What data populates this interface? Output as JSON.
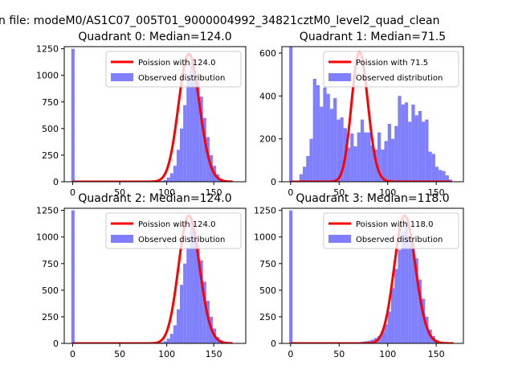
{
  "figure": {
    "suptitle": "n file: modeM0/AS1C07_005T01_9000004992_34821cztM0_level2_quad_clean"
  },
  "colors": {
    "hist": "#7f7fff",
    "poisson": "#ff0000",
    "axis": "#000000"
  },
  "chart_data": [
    {
      "type": "bar",
      "title": "Quadrant 0: Median=124.0",
      "median": 124.0,
      "bin_width": 3.5,
      "xlim": [
        -9,
        184
      ],
      "ylim": [
        0,
        1270
      ],
      "xticks": [
        0,
        50,
        100,
        150
      ],
      "yticks": [
        0,
        250,
        500,
        750,
        1000,
        1250
      ],
      "legend": [
        "Poission with 124.0",
        "Observed distribution"
      ],
      "legend_position": "top-right",
      "bins": [
        [
          -1.5,
          1250
        ],
        [
          2,
          0
        ],
        [
          5.5,
          0
        ],
        [
          9,
          0
        ],
        [
          12.5,
          0
        ],
        [
          16,
          0
        ],
        [
          19.5,
          0
        ],
        [
          23,
          0
        ],
        [
          26.5,
          0
        ],
        [
          30,
          0
        ],
        [
          33.5,
          0
        ],
        [
          37,
          0
        ],
        [
          40.5,
          0
        ],
        [
          44,
          0
        ],
        [
          47.5,
          0
        ],
        [
          51,
          0
        ],
        [
          54.5,
          0
        ],
        [
          58,
          0
        ],
        [
          61.5,
          0
        ],
        [
          65,
          0
        ],
        [
          68.5,
          0
        ],
        [
          72,
          5
        ],
        [
          75.5,
          0
        ],
        [
          79,
          0
        ],
        [
          82.5,
          5
        ],
        [
          86,
          0
        ],
        [
          89.5,
          5
        ],
        [
          93,
          8
        ],
        [
          96.5,
          15
        ],
        [
          100,
          40
        ],
        [
          103.5,
          80
        ],
        [
          107,
          150
        ],
        [
          110.5,
          300
        ],
        [
          114,
          500
        ],
        [
          117.5,
          720
        ],
        [
          121,
          950
        ],
        [
          124.5,
          1120
        ],
        [
          128,
          1050
        ],
        [
          131.5,
          950
        ],
        [
          135,
          800
        ],
        [
          138.5,
          600
        ],
        [
          142,
          420
        ],
        [
          145.5,
          250
        ],
        [
          149,
          150
        ],
        [
          152.5,
          70
        ],
        [
          156,
          30
        ],
        [
          159.5,
          15
        ],
        [
          163,
          8
        ],
        [
          166.5,
          3
        ]
      ],
      "poisson_line": {
        "x_start": 0,
        "x_end": 170,
        "peak": 1200
      }
    },
    {
      "type": "bar",
      "title": "Quadrant 1: Median=71.5",
      "median": 71.5,
      "bin_width": 3.5,
      "xlim": [
        -9,
        178
      ],
      "ylim": [
        0,
        630
      ],
      "xticks": [
        0,
        50,
        100,
        150
      ],
      "yticks": [
        0,
        200,
        400,
        600
      ],
      "legend": [
        "Poission with 71.5",
        "Observed distribution"
      ],
      "legend_position": "top-right",
      "bins": [
        [
          -1.5,
          630
        ],
        [
          2,
          0
        ],
        [
          5.5,
          5
        ],
        [
          9,
          35
        ],
        [
          12.5,
          70
        ],
        [
          16,
          120
        ],
        [
          19.5,
          200
        ],
        [
          23,
          480
        ],
        [
          26.5,
          450
        ],
        [
          30,
          350
        ],
        [
          33.5,
          440
        ],
        [
          37,
          410
        ],
        [
          40.5,
          340
        ],
        [
          44,
          390
        ],
        [
          47.5,
          290
        ],
        [
          51,
          300
        ],
        [
          54.5,
          250
        ],
        [
          58,
          160
        ],
        [
          61.5,
          225
        ],
        [
          65,
          165
        ],
        [
          68.5,
          230
        ],
        [
          72,
          290
        ],
        [
          75.5,
          230
        ],
        [
          79,
          230
        ],
        [
          82.5,
          170
        ],
        [
          86,
          150
        ],
        [
          89.5,
          230
        ],
        [
          93,
          150
        ],
        [
          96.5,
          190
        ],
        [
          100,
          270
        ],
        [
          103.5,
          200
        ],
        [
          107,
          260
        ],
        [
          110.5,
          400
        ],
        [
          114,
          360
        ],
        [
          117.5,
          370
        ],
        [
          121,
          280
        ],
        [
          124.5,
          360
        ],
        [
          128,
          310
        ],
        [
          131.5,
          330
        ],
        [
          135,
          280
        ],
        [
          138.5,
          290
        ],
        [
          142,
          140
        ],
        [
          145.5,
          130
        ],
        [
          149,
          70
        ],
        [
          152.5,
          55
        ],
        [
          156,
          50
        ],
        [
          159.5,
          30
        ],
        [
          163,
          10
        ]
      ],
      "poisson_line": {
        "x_start": 0,
        "x_end": 165,
        "peak": 605
      }
    },
    {
      "type": "bar",
      "title": "Quadrant 2: Median=124.0",
      "median": 124.0,
      "bin_width": 3.5,
      "xlim": [
        -9,
        184
      ],
      "ylim": [
        0,
        1270
      ],
      "xticks": [
        0,
        50,
        100,
        150
      ],
      "yticks": [
        0,
        250,
        500,
        750,
        1000,
        1250
      ],
      "legend": [
        "Poission with 124.0",
        "Observed distribution"
      ],
      "legend_position": "top-right",
      "bins": [
        [
          -1.5,
          1250
        ],
        [
          2,
          0
        ],
        [
          5.5,
          0
        ],
        [
          9,
          0
        ],
        [
          12.5,
          0
        ],
        [
          16,
          0
        ],
        [
          19.5,
          0
        ],
        [
          23,
          0
        ],
        [
          26.5,
          0
        ],
        [
          30,
          0
        ],
        [
          33.5,
          0
        ],
        [
          37,
          0
        ],
        [
          40.5,
          0
        ],
        [
          44,
          0
        ],
        [
          47.5,
          0
        ],
        [
          51,
          0
        ],
        [
          54.5,
          0
        ],
        [
          58,
          0
        ],
        [
          61.5,
          0
        ],
        [
          65,
          0
        ],
        [
          68.5,
          5
        ],
        [
          72,
          0
        ],
        [
          75.5,
          3
        ],
        [
          79,
          0
        ],
        [
          82.5,
          5
        ],
        [
          86,
          0
        ],
        [
          89.5,
          5
        ],
        [
          93,
          10
        ],
        [
          96.5,
          20
        ],
        [
          100,
          45
        ],
        [
          103.5,
          90
        ],
        [
          107,
          170
        ],
        [
          110.5,
          320
        ],
        [
          114,
          550
        ],
        [
          117.5,
          750
        ],
        [
          121,
          900
        ],
        [
          124.5,
          1150
        ],
        [
          128,
          1050
        ],
        [
          131.5,
          930
        ],
        [
          135,
          780
        ],
        [
          138.5,
          580
        ],
        [
          142,
          400
        ],
        [
          145.5,
          250
        ],
        [
          149,
          140
        ],
        [
          152.5,
          60
        ],
        [
          156,
          30
        ],
        [
          159.5,
          12
        ],
        [
          163,
          5
        ],
        [
          166.5,
          3
        ]
      ],
      "poisson_line": {
        "x_start": 0,
        "x_end": 170,
        "peak": 1200
      }
    },
    {
      "type": "bar",
      "title": "Quadrant 3: Median=118.0",
      "median": 118.0,
      "bin_width": 3.5,
      "xlim": [
        -9,
        178
      ],
      "ylim": [
        0,
        1270
      ],
      "xticks": [
        0,
        50,
        100,
        150
      ],
      "yticks": [
        0,
        250,
        500,
        750,
        1000,
        1250
      ],
      "legend": [
        "Poission with 118.0",
        "Observed distribution"
      ],
      "legend_position": "top-right",
      "bins": [
        [
          -1.5,
          1250
        ],
        [
          2,
          0
        ],
        [
          5.5,
          0
        ],
        [
          9,
          0
        ],
        [
          12.5,
          0
        ],
        [
          16,
          0
        ],
        [
          19.5,
          0
        ],
        [
          23,
          0
        ],
        [
          26.5,
          0
        ],
        [
          30,
          0
        ],
        [
          33.5,
          0
        ],
        [
          37,
          0
        ],
        [
          40.5,
          0
        ],
        [
          44,
          0
        ],
        [
          47.5,
          0
        ],
        [
          51,
          0
        ],
        [
          54.5,
          5
        ],
        [
          58,
          0
        ],
        [
          61.5,
          10
        ],
        [
          65,
          5
        ],
        [
          68.5,
          10
        ],
        [
          72,
          15
        ],
        [
          75.5,
          20
        ],
        [
          79,
          25
        ],
        [
          82.5,
          35
        ],
        [
          86,
          50
        ],
        [
          89.5,
          70
        ],
        [
          93,
          110
        ],
        [
          96.5,
          180
        ],
        [
          100,
          300
        ],
        [
          103.5,
          520
        ],
        [
          107,
          700
        ],
        [
          110.5,
          880
        ],
        [
          114,
          1050
        ],
        [
          117.5,
          1150
        ],
        [
          121,
          1000
        ],
        [
          124.5,
          950
        ],
        [
          128,
          800
        ],
        [
          131.5,
          600
        ],
        [
          135,
          420
        ],
        [
          138.5,
          250
        ],
        [
          142,
          130
        ],
        [
          145.5,
          70
        ],
        [
          149,
          30
        ],
        [
          152.5,
          15
        ],
        [
          156,
          5
        ],
        [
          159.5,
          3
        ]
      ],
      "poisson_line": {
        "x_start": 0,
        "x_end": 168,
        "peak": 1200
      }
    }
  ]
}
